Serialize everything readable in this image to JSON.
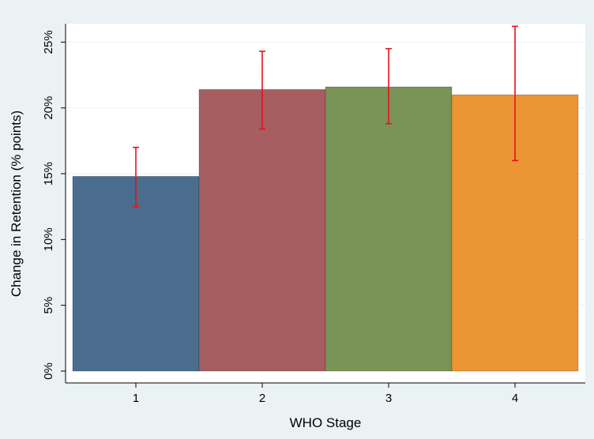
{
  "chart_data": {
    "type": "bar",
    "title": "",
    "xlabel": "WHO Stage",
    "ylabel": "Change in Retention (% points)",
    "categories": [
      "1",
      "2",
      "3",
      "4"
    ],
    "values": [
      14.8,
      21.4,
      21.6,
      21.0
    ],
    "error_low": [
      12.5,
      18.4,
      18.8,
      16.0
    ],
    "error_high": [
      17.0,
      24.3,
      24.5,
      26.2
    ],
    "colors": [
      "#4a6d8e",
      "#a65e61",
      "#7a9357",
      "#eb9534"
    ],
    "error_color": "#e8111b",
    "ylim": [
      0,
      26.4
    ],
    "yticks": [
      0,
      5,
      10,
      15,
      20,
      25
    ],
    "ytick_labels": [
      "0%",
      "5%",
      "10%",
      "15%",
      "20%",
      "25%"
    ],
    "grid": true,
    "legend": "none"
  }
}
